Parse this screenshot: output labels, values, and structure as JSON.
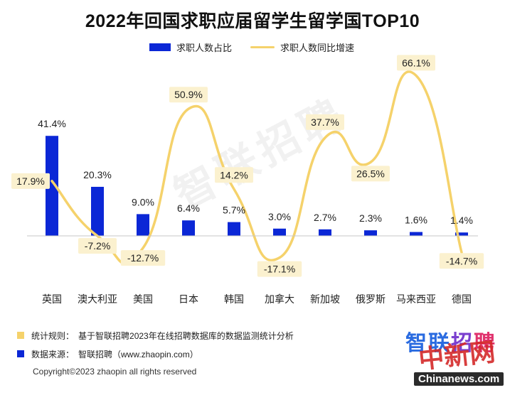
{
  "title": "2022年回国求职应届留学生留学国TOP10",
  "legend": {
    "bar_label": "求职人数占比",
    "line_label": "求职人数同比增速"
  },
  "colors": {
    "bar": "#0b27d6",
    "line": "#f5d26b",
    "label_box": "#fbf1cf",
    "axis": "#c7c7c7"
  },
  "chart_data": {
    "type": "bar",
    "categories": [
      "英国",
      "澳大利亚",
      "美国",
      "日本",
      "韩国",
      "加拿大",
      "新加坡",
      "俄罗斯",
      "马来西亚",
      "德国"
    ],
    "series": [
      {
        "name": "求职人数占比",
        "type": "bar",
        "values": [
          41.4,
          20.3,
          9.0,
          6.4,
          5.7,
          3.0,
          2.7,
          2.3,
          1.6,
          1.4
        ],
        "labels": [
          "41.4%",
          "20.3%",
          "9.0%",
          "6.4%",
          "5.7%",
          "3.0%",
          "2.7%",
          "2.3%",
          "1.6%",
          "1.4%"
        ]
      },
      {
        "name": "求职人数同比增速",
        "type": "line",
        "smooth": true,
        "values": [
          17.9,
          -7.2,
          -12.7,
          50.9,
          14.2,
          -17.1,
          37.7,
          26.5,
          66.1,
          -14.7
        ],
        "labels": [
          "17.9%",
          "-7.2%",
          "-12.7%",
          "50.9%",
          "14.2%",
          "-17.1%",
          "37.7%",
          "26.5%",
          "66.1%",
          "-14.7%"
        ]
      }
    ],
    "grid": false
  },
  "footnotes": {
    "rule_key": "统计规则：",
    "rule_text": "基于智联招聘2023年在线招聘数据库的数据监测统计分析",
    "source_key": "数据来源：",
    "source_text": "智联招聘（www.zhaopin.com）"
  },
  "copyright": "Copyright©2023 zhaopin all rights reserved",
  "brand_logo": "智联招聘",
  "watermark": "智联招聘",
  "stamp": "中新网",
  "site": "Chinanews.com"
}
